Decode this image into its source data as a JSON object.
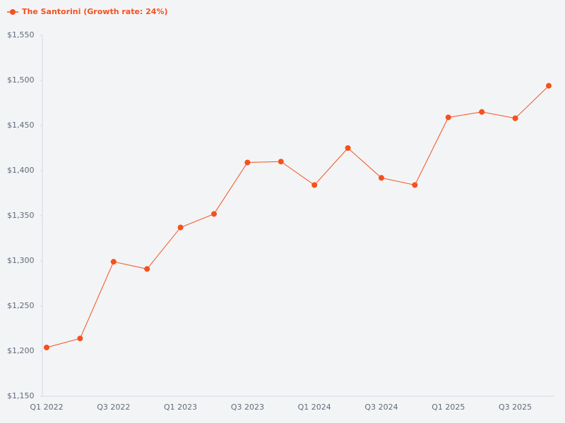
{
  "chart_data": {
    "type": "line",
    "categories": [
      "Q1 2022",
      null,
      "Q3 2022",
      null,
      "Q1 2023",
      null,
      "Q3 2023",
      null,
      "Q1 2024",
      null,
      "Q3 2024",
      null,
      "Q1 2025",
      null,
      "Q3 2025",
      null
    ],
    "series": [
      {
        "name": "The Santorini (Growth rate: 24%)",
        "color": "#f4511e",
        "values": [
          1204,
          1214,
          1299,
          1291,
          1337,
          1352,
          1409,
          1410,
          1384,
          1425,
          1392,
          1384,
          1459,
          1465,
          1458,
          1494
        ]
      }
    ],
    "ylim": [
      1150,
      1550
    ],
    "yticks": [
      {
        "value": 1150,
        "label": "$1,150"
      },
      {
        "value": 1200,
        "label": "$1,200"
      },
      {
        "value": 1250,
        "label": "$1,250"
      },
      {
        "value": 1300,
        "label": "$1,300"
      },
      {
        "value": 1350,
        "label": "$1,350"
      },
      {
        "value": 1400,
        "label": "$1,400"
      },
      {
        "value": 1450,
        "label": "$1,450"
      },
      {
        "value": 1500,
        "label": "$1,500"
      },
      {
        "value": 1550,
        "label": "$1,550"
      }
    ],
    "grid": false,
    "legend": "top-left"
  }
}
